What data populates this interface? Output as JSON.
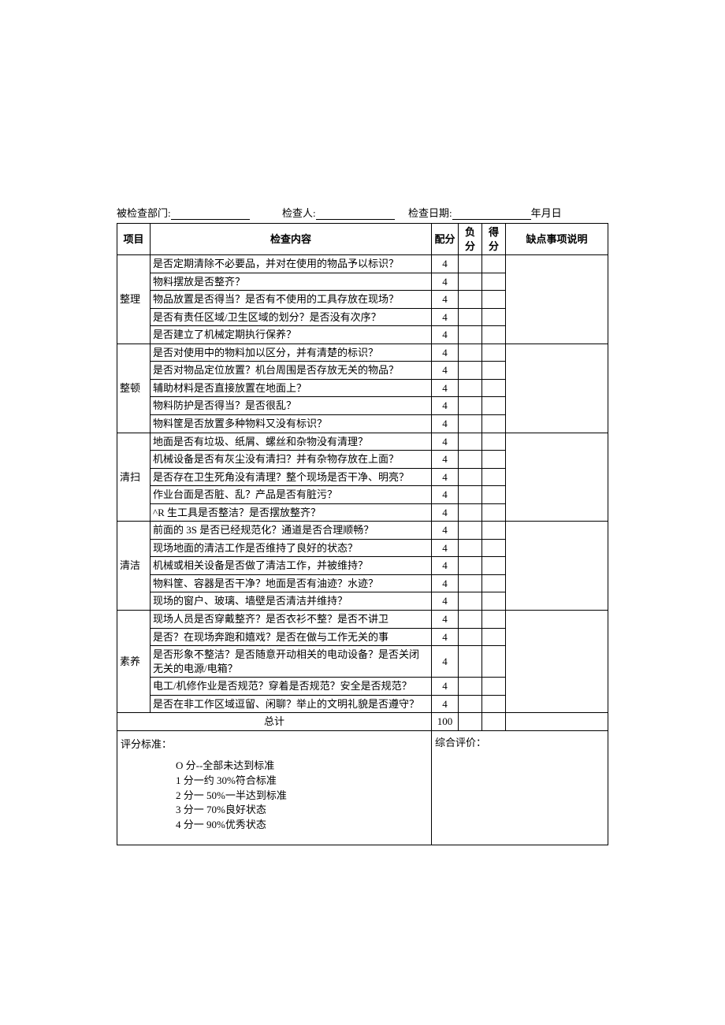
{
  "header": {
    "dept_label": "被检查部门:",
    "inspector_label": "检查人:",
    "date_label": "检查日期:",
    "date_value": "年月日"
  },
  "columns": {
    "category": "项目",
    "content": "检查内容",
    "allocated": "配分",
    "deduct": "负分",
    "score": "得分",
    "note": "缺点事项说明"
  },
  "sections": [
    {
      "name": "整理",
      "rows": [
        {
          "text": "是否定期清除不必要品，并对在使用的物品予以标识？",
          "score": 4
        },
        {
          "text": "物料摆放是否整齐？",
          "score": 4
        },
        {
          "text": "物品放置是否得当？是否有不使用的工具存放在现场？",
          "score": 4
        },
        {
          "text": "是否有责任区域/卫生区域的划分？是否没有次序？",
          "score": 4
        },
        {
          "text": "是否建立了机械定期执行保养？",
          "score": 4
        }
      ]
    },
    {
      "name": "整顿",
      "rows": [
        {
          "text": "是否对使用中的物料加以区分，并有清楚的标识？",
          "score": 4
        },
        {
          "text": "是否对物品定位放置？机台周围是否存放无关的物品？",
          "score": 4
        },
        {
          "text": "辅助材料是否直接放置在地面上？",
          "score": 4
        },
        {
          "text": "物料防护是否得当？是否很乱？",
          "score": 4
        },
        {
          "text": "物料筐是否放置多种物料又没有标识？",
          "score": 4
        }
      ]
    },
    {
      "name": "清扫",
      "rows": [
        {
          "text": "地面是否有垃圾、纸屑、螺丝和杂物没有清理？",
          "score": 4
        },
        {
          "text": "机械设备是否有灰尘没有清扫？并有杂物存放在上面？",
          "score": 4
        },
        {
          "text": "是否存在卫生死角没有清理？整个现场是否干净、明亮？",
          "score": 4
        },
        {
          "text": "作业台面是否脏、乱？产品是否有脏污？",
          "score": 4
        },
        {
          "text": "^R 生工具是否整洁？是否摆放整齐？",
          "score": 4
        }
      ]
    },
    {
      "name": "清洁",
      "rows": [
        {
          "text": "前面的 3S 是否已经规范化？通道是否合理顺畅？",
          "score": 4
        },
        {
          "text": "现场地面的清洁工作是否维持了良好的状态？",
          "score": 4
        },
        {
          "text": "机械或相关设备是否做了清洁工作，并被维持？",
          "score": 4
        },
        {
          "text": "物料筐、容器是否干净？地面是否有油迹？水迹？",
          "score": 4
        },
        {
          "text": "现场的窗户、玻璃、墙壁是否清洁并维持？",
          "score": 4
        }
      ]
    },
    {
      "name": "素养",
      "rows": [
        {
          "text": "现场人员是否穿戴整齐？是否衣衫不整？是否不讲卫",
          "score": 4
        },
        {
          "text": "是否？在现场奔跑和嬉戏？是否在做与工作无关的事",
          "score": 4
        },
        {
          "text": "是否形象不整洁？是否随意开动相关的电动设备？是否关闭无关的电源/电箱？",
          "score": 4
        },
        {
          "text": "电工/机修作业是否规范？穿着是否规范？安全是否规范？",
          "score": 4
        },
        {
          "text": "是否在非工作区域逗留、闲聊？举止的文明礼貌是否遵守？",
          "score": 4
        }
      ]
    }
  ],
  "total": {
    "label": "总计",
    "score": 100
  },
  "criteria": {
    "title": "评分标准：",
    "lines": [
      "O 分--全部未达到标准",
      "1 分一约 30%符合标准",
      "2 分一 50%一半达到标准",
      "3 分一 70%良好状态",
      "4 分一 90%优秀状态"
    ]
  },
  "evaluation_label": "综合评价："
}
